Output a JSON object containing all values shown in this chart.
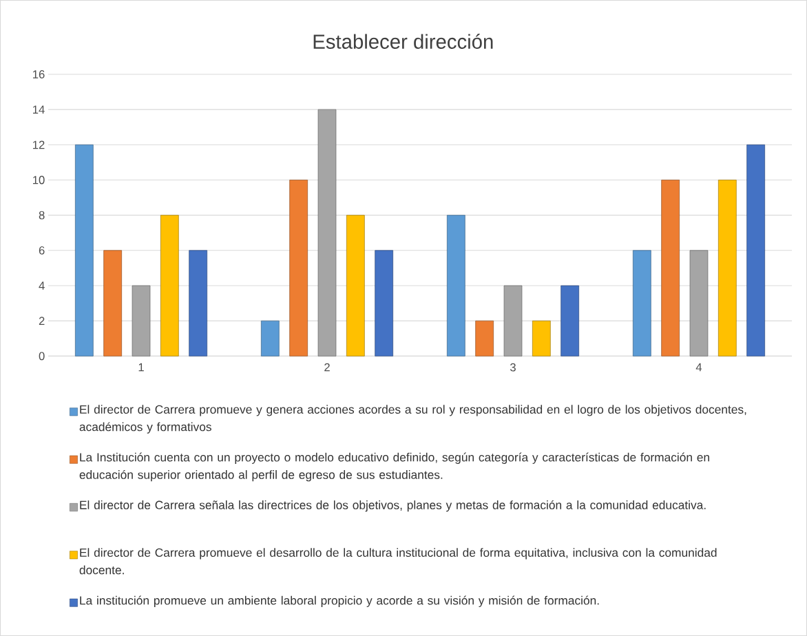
{
  "chart_data": {
    "type": "bar",
    "title": "Establecer dirección",
    "categories": [
      "1",
      "2",
      "3",
      "4"
    ],
    "series": [
      {
        "name": "El director de Carrera promueve y genera acciones acordes a su rol y responsabilidad en el logro de los objetivos docentes, académicos y formativos",
        "color": "#5b9bd5",
        "values": [
          12,
          2,
          8,
          6
        ]
      },
      {
        "name": "La Institución cuenta con un proyecto o modelo educativo definido, según categoría y características de formación en educación superior orientado al perfil de egreso de sus estudiantes.",
        "color": "#ed7d31",
        "values": [
          6,
          10,
          2,
          10
        ]
      },
      {
        "name": "El director de Carrera señala las directrices de los objetivos, planes y metas de formación a la comunidad educativa.",
        "color": "#a5a5a5",
        "values": [
          4,
          14,
          4,
          6
        ]
      },
      {
        "name": "El director de Carrera promueve el desarrollo de la cultura institucional de forma equitativa, inclusiva con la comunidad docente.",
        "color": "#ffc000",
        "values": [
          8,
          8,
          2,
          10
        ]
      },
      {
        "name": "La institución promueve un ambiente laboral propicio y acorde a su visión y misión de formación.",
        "color": "#4472c4",
        "values": [
          6,
          6,
          4,
          12
        ]
      }
    ],
    "ylim": [
      0,
      16
    ],
    "yticks": [
      0,
      2,
      4,
      6,
      8,
      10,
      12,
      14,
      16
    ],
    "grid": "y",
    "legend": "bottom"
  }
}
